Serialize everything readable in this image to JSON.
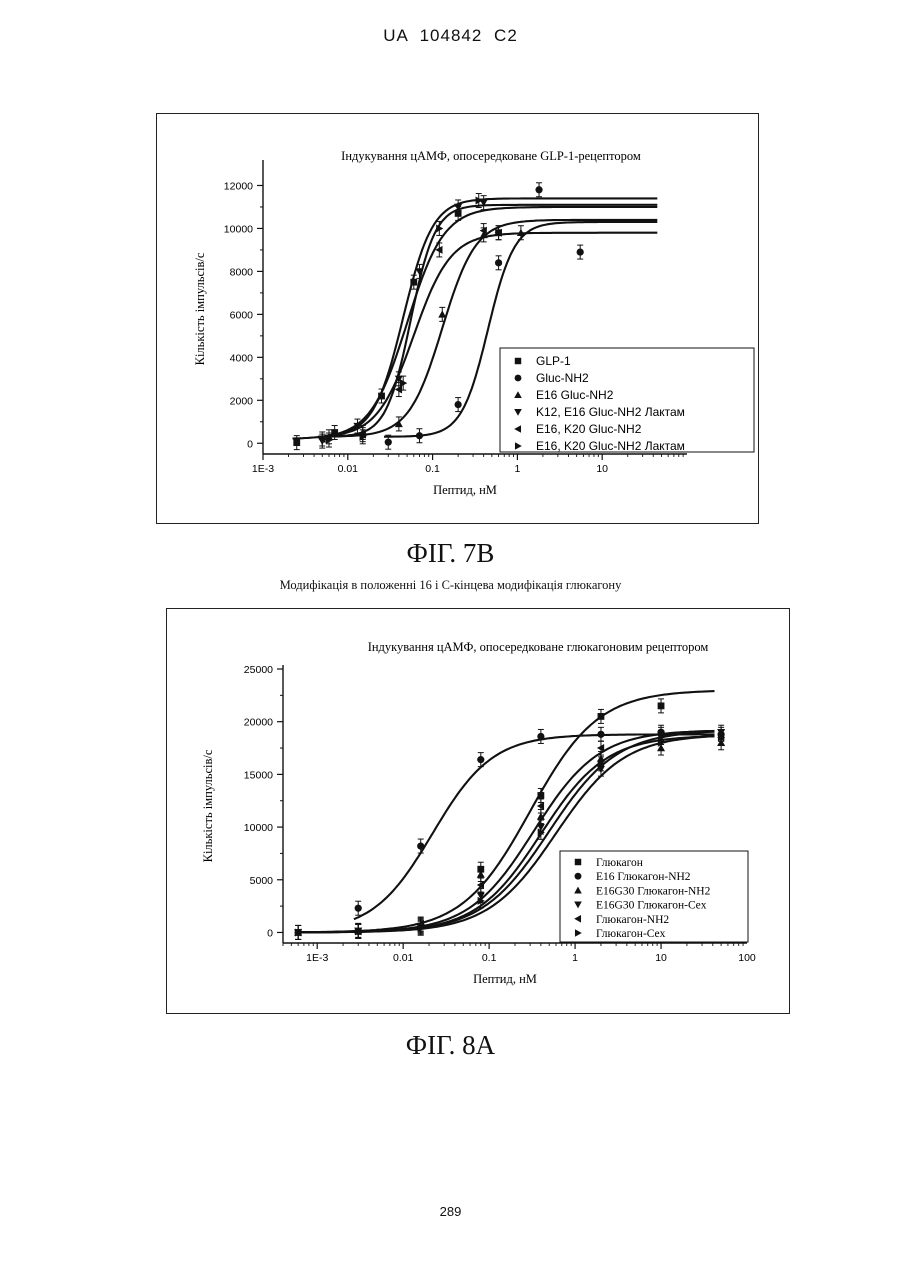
{
  "page": {
    "header": "UA 104842 C2",
    "page_number": "289"
  },
  "figure_7b": {
    "caption": "ФІГ. 7В"
  },
  "figure_8a": {
    "heading": "Модифікація в положенні 16 і С-кінцева модифікація глюкагону",
    "caption": "ФІГ. 8А"
  },
  "chart_data": [
    {
      "id": "fig7b",
      "type": "scatter",
      "title": "Індукування цАМФ, опосередковане GLP-1-рецептором",
      "xlabel": "Пептид, нМ",
      "ylabel": "Кількість імпульсів/с",
      "xscale": "log",
      "xlim": [
        0.001,
        100
      ],
      "ylim": [
        -500,
        13000
      ],
      "xticks": [
        0.001,
        0.01,
        0.1,
        1,
        10
      ],
      "xtick_labels": [
        "1E-3",
        "0.01",
        "0.1",
        "1",
        "10"
      ],
      "yticks": [
        0,
        2000,
        4000,
        6000,
        8000,
        10000,
        12000
      ],
      "ytick_labels": [
        "0",
        "2000",
        "4000",
        "6000",
        "8000",
        "10000",
        "12000"
      ],
      "legend_position": "bottom-right",
      "series": [
        {
          "name": "GLP-1",
          "marker": "square",
          "points": [
            [
              0.0025,
              30
            ],
            [
              0.007,
              500
            ],
            [
              0.025,
              2200
            ],
            [
              0.06,
              7500
            ],
            [
              0.2,
              10700
            ],
            [
              0.6,
              9800
            ]
          ],
          "curve": {
            "bottom": 200,
            "top": 11000,
            "ec50": 0.05,
            "hill": 2.0
          }
        },
        {
          "name": "Gluc-NH2",
          "marker": "circle",
          "points": [
            [
              0.03,
              50
            ],
            [
              0.07,
              350
            ],
            [
              0.2,
              1800
            ],
            [
              0.6,
              8400
            ],
            [
              1.8,
              11800
            ],
            [
              5.5,
              8900
            ]
          ],
          "curve": {
            "bottom": 300,
            "top": 10300,
            "ec50": 0.45,
            "hill": 2.8
          }
        },
        {
          "name": "E16 Gluc-NH2",
          "marker": "triangle-up",
          "points": [
            [
              0.006,
              300
            ],
            [
              0.015,
              500
            ],
            [
              0.04,
              900
            ],
            [
              0.13,
              6000
            ],
            [
              0.4,
              9700
            ],
            [
              1.1,
              9800
            ]
          ],
          "curve": {
            "bottom": 300,
            "top": 10400,
            "ec50": 0.13,
            "hill": 2.2
          }
        },
        {
          "name": "K12, E16 Gluc-NH2 Лактам",
          "marker": "triangle-down",
          "points": [
            [
              0.005,
              100
            ],
            [
              0.013,
              800
            ],
            [
              0.04,
              3000
            ],
            [
              0.07,
              8000
            ],
            [
              0.2,
              11000
            ],
            [
              0.4,
              11200
            ]
          ],
          "curve": {
            "bottom": 300,
            "top": 11100,
            "ec50": 0.055,
            "hill": 3.0
          }
        },
        {
          "name": "E16, K20 Gluc-NH2",
          "marker": "triangle-left",
          "points": [
            [
              0.005,
              200
            ],
            [
              0.015,
              400
            ],
            [
              0.04,
              2500
            ],
            [
              0.12,
              9000
            ],
            [
              0.4,
              9900
            ],
            [
              0.6,
              9800
            ]
          ],
          "curve": {
            "bottom": 250,
            "top": 9800,
            "ec50": 0.06,
            "hill": 2.0
          }
        },
        {
          "name": "E16, K20 Gluc-NH2 Лактам",
          "marker": "triangle-right",
          "points": [
            [
              0.006,
              150
            ],
            [
              0.015,
              300
            ],
            [
              0.045,
              2800
            ],
            [
              0.12,
              10000
            ],
            [
              0.35,
              11300
            ]
          ],
          "curve": {
            "bottom": 300,
            "top": 11400,
            "ec50": 0.045,
            "hill": 2.5
          }
        }
      ]
    },
    {
      "id": "fig8a",
      "type": "scatter",
      "title": "Індукування цАМФ, опосередковане глюкагоновим рецептором",
      "xlabel": "Пептид, нМ",
      "ylabel": "Кількість імпульсів/с",
      "xscale": "log",
      "xlim": [
        0.0004,
        100
      ],
      "ylim": [
        -1000,
        25000
      ],
      "xticks": [
        0.001,
        0.01,
        0.1,
        1,
        10,
        100
      ],
      "xtick_labels": [
        "1E-3",
        "0.01",
        "0.1",
        "1",
        "10",
        "100"
      ],
      "yticks": [
        0,
        5000,
        10000,
        15000,
        20000,
        25000
      ],
      "ytick_labels": [
        "0",
        "5000",
        "10000",
        "15000",
        "20000",
        "25000"
      ],
      "legend_position": "bottom-right",
      "series": [
        {
          "name": "Глюкагон",
          "marker": "square",
          "points": [
            [
              0.0006,
              0
            ],
            [
              0.003,
              100
            ],
            [
              0.016,
              600
            ],
            [
              0.08,
              6000
            ],
            [
              0.4,
              13000
            ],
            [
              2,
              20500
            ],
            [
              10,
              21500
            ]
          ],
          "curve": {
            "bottom": 0,
            "top": 23000,
            "ec50": 0.3,
            "hill": 1.1
          }
        },
        {
          "name": "E16 Глюкагон-NH2",
          "marker": "circle",
          "points": [
            [
              0.003,
              2300
            ],
            [
              0.016,
              8200
            ],
            [
              0.08,
              16400
            ],
            [
              0.4,
              18600
            ],
            [
              2,
              18800
            ],
            [
              10,
              19000
            ],
            [
              50,
              18800
            ]
          ],
          "curve": {
            "bottom": 0,
            "top": 18800,
            "ec50": 0.022,
            "hill": 1.25
          }
        },
        {
          "name": "E16G30 Глюкагон-NH2",
          "marker": "triangle-up",
          "points": [
            [
              0.0006,
              0
            ],
            [
              0.003,
              200
            ],
            [
              0.016,
              700
            ],
            [
              0.08,
              5500
            ],
            [
              0.4,
              11000
            ],
            [
              2,
              16500
            ],
            [
              10,
              17500
            ],
            [
              50,
              18000
            ]
          ],
          "curve": {
            "bottom": 0,
            "top": 18700,
            "ec50": 0.4,
            "hill": 1.15
          }
        },
        {
          "name": "E16G30 Глюкагон-Cex",
          "marker": "triangle-down",
          "points": [
            [
              0.0006,
              0
            ],
            [
              0.003,
              150
            ],
            [
              0.016,
              500
            ],
            [
              0.08,
              3500
            ],
            [
              0.4,
              10000
            ],
            [
              2,
              15500
            ],
            [
              10,
              18500
            ],
            [
              50,
              19000
            ]
          ],
          "curve": {
            "bottom": 0,
            "top": 19200,
            "ec50": 0.5,
            "hill": 1.1
          }
        },
        {
          "name": "Глюкагон-NH2",
          "marker": "triangle-left",
          "points": [
            [
              0.0006,
              0
            ],
            [
              0.003,
              100
            ],
            [
              0.016,
              800
            ],
            [
              0.08,
              4500
            ],
            [
              0.4,
              12000
            ],
            [
              2,
              17500
            ],
            [
              10,
              18800
            ],
            [
              50,
              18500
            ]
          ],
          "curve": {
            "bottom": 0,
            "top": 19200,
            "ec50": 0.33,
            "hill": 1.15
          }
        },
        {
          "name": "Глюкагон-Cex",
          "marker": "triangle-right",
          "points": [
            [
              0.0006,
              0
            ],
            [
              0.003,
              100
            ],
            [
              0.016,
              400
            ],
            [
              0.08,
              3000
            ],
            [
              0.4,
              9500
            ],
            [
              2,
              16000
            ],
            [
              10,
              18000
            ],
            [
              50,
              18500
            ]
          ],
          "curve": {
            "bottom": 0,
            "top": 18800,
            "ec50": 0.6,
            "hill": 1.1
          }
        }
      ]
    }
  ]
}
